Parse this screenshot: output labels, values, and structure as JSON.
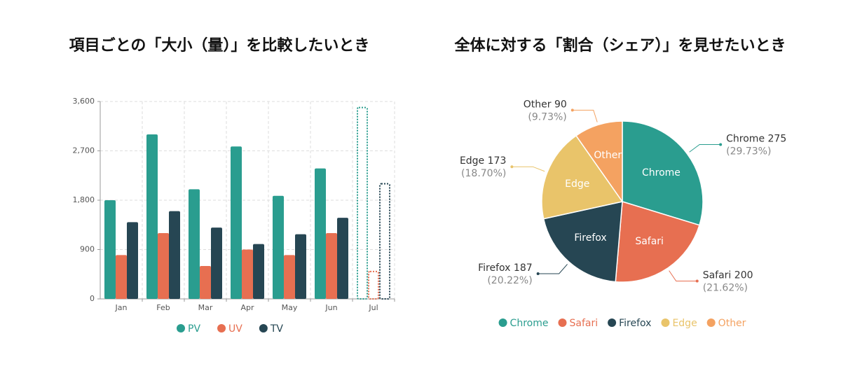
{
  "chart_data": [
    {
      "type": "bar",
      "title": "項目ごとの「大小（量）」を比較したいとき",
      "categories": [
        "Jan",
        "Feb",
        "Mar",
        "Apr",
        "May",
        "Jun",
        "Jul"
      ],
      "series": [
        {
          "name": "PV",
          "color": "#2a9d8f",
          "values": [
            1800,
            3000,
            2000,
            2780,
            1880,
            2380,
            3490
          ]
        },
        {
          "name": "UV",
          "color": "#e76f51",
          "values": [
            800,
            1200,
            600,
            900,
            800,
            1200,
            500
          ]
        },
        {
          "name": "TV",
          "color": "#264653",
          "values": [
            1400,
            1600,
            1300,
            1000,
            1180,
            1480,
            2100
          ]
        }
      ],
      "ylim": [
        0,
        3600
      ],
      "yticks": [
        0,
        900,
        {
          "value": 1800,
          "label": "1,800"
        },
        {
          "value": 2700,
          "label": "2,700"
        },
        {
          "value": 3600,
          "label": "3,600"
        }
      ],
      "grid": true,
      "dashed_last": true,
      "legend": "bottom"
    },
    {
      "type": "pie",
      "title": "全体に対する「割合（シェア）」を見せたいとき",
      "categories": [
        "Chrome",
        "Safari",
        "Firefox",
        "Edge",
        "Other"
      ],
      "values": [
        275,
        200,
        187,
        173,
        90
      ],
      "percent_labels": [
        "(29.73%)",
        "(21.62%)",
        "(20.22%)",
        "(18.70%)",
        "(9.73%)"
      ],
      "colors": [
        "#2a9d8f",
        "#e76f51",
        "#264653",
        "#e9c46a",
        "#f4a261"
      ],
      "legend": "bottom"
    }
  ]
}
